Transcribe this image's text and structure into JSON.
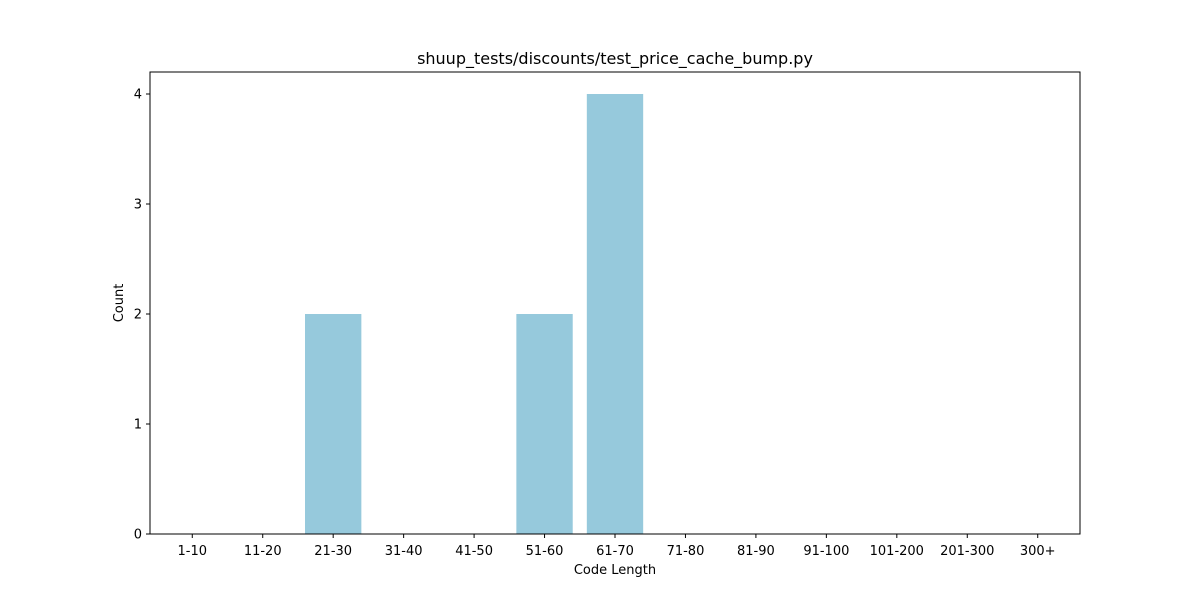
{
  "chart_data": {
    "type": "bar",
    "title": "shuup_tests/discounts/test_price_cache_bump.py",
    "xlabel": "Code Length",
    "ylabel": "Count",
    "categories": [
      "1-10",
      "11-20",
      "21-30",
      "31-40",
      "41-50",
      "51-60",
      "61-70",
      "71-80",
      "81-90",
      "91-100",
      "101-200",
      "201-300",
      "300+"
    ],
    "values": [
      0,
      0,
      2,
      0,
      0,
      2,
      4,
      0,
      0,
      0,
      0,
      0,
      0
    ],
    "ylim": [
      0,
      4.2
    ],
    "yticks": [
      0,
      1,
      2,
      3,
      4
    ],
    "bar_color": "#96c9dc",
    "grid": false,
    "legend": "none"
  }
}
